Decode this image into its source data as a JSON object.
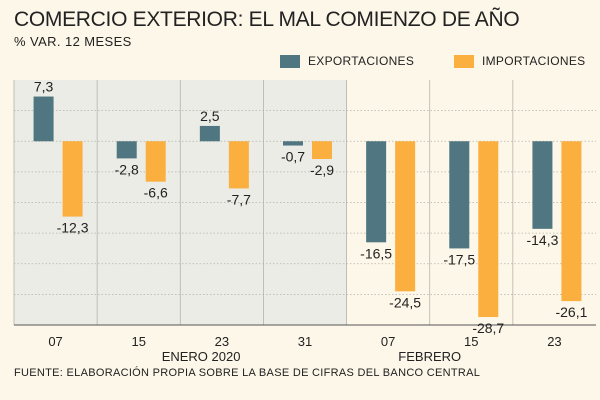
{
  "chart_data": {
    "type": "bar",
    "title": "COMERCIO EXTERIOR: EL MAL COMIENZO DE AÑO",
    "subtitle": "% VAR. 12 MESES",
    "categories": [
      "07",
      "15",
      "23",
      "31",
      "07",
      "15",
      "23"
    ],
    "month_groups": [
      {
        "label": "ENERO 2020",
        "categories": [
          "07",
          "15",
          "23",
          "31"
        ]
      },
      {
        "label": "FEBRERO",
        "categories": [
          "07",
          "15",
          "23"
        ]
      }
    ],
    "series": [
      {
        "name": "EXPORTACIONES",
        "color": "#4f7681",
        "values": [
          7.3,
          -2.8,
          2.5,
          -0.7,
          -16.5,
          -17.5,
          -14.3
        ],
        "labels": [
          "7,3",
          "-2,8",
          "2,5",
          "-0,7",
          "-16,5",
          "-17,5",
          "-14,3"
        ]
      },
      {
        "name": "IMPORTACIONES",
        "color": "#fbaf3f",
        "values": [
          -12.3,
          -6.6,
          -7.7,
          -2.9,
          -24.5,
          -28.7,
          -26.1
        ],
        "labels": [
          "-12,3",
          "-6,6",
          "-7,7",
          "-2,9",
          "-24,5",
          "-28,7",
          "-26,1"
        ]
      }
    ],
    "ylim": [
      -30,
      10
    ],
    "xlabel": "",
    "ylabel": "",
    "grid": true,
    "legend": "top-right",
    "source": "FUENTE: ELABORACIÓN PROPIA SOBRE LA BASE DE CIFRAS DEL BANCO CENTRAL"
  },
  "colors": {
    "background": "#fdf7e9",
    "enero_panel": "#eaece5",
    "grid": "#b5b2ab",
    "axis": "#555555"
  }
}
